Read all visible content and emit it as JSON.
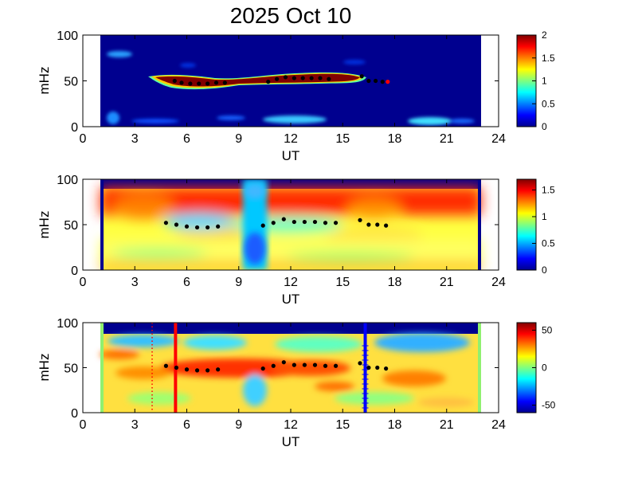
{
  "title": "2025 Oct 10",
  "colors": {
    "deep_blue": "#00008f",
    "dark_red": "#800000",
    "marker_black": "#000000",
    "marker_red": "#ff0000",
    "line_red": "#ff0000",
    "line_blue": "#0000ff"
  },
  "chart_data": [
    {
      "type": "heatmap",
      "xlabel": "UT",
      "ylabel": "mHz",
      "xlim": [
        0,
        24
      ],
      "ylim": [
        0,
        100
      ],
      "xticks": [
        0,
        3,
        6,
        9,
        12,
        15,
        18,
        21,
        24
      ],
      "yticks": [
        0,
        50,
        100
      ],
      "data_range_x": [
        1,
        23
      ],
      "colorbar": {
        "range": [
          0,
          2
        ],
        "ticks": [
          "0",
          "0.5",
          "1",
          "1.5",
          "2"
        ]
      },
      "features": [
        {
          "label": "high-power band",
          "x": [
            4.5,
            16.2
          ],
          "y_center": 52,
          "intensity": 2.0
        },
        {
          "label": "patch",
          "x": [
            1.7,
            2.8
          ],
          "y_center": 78,
          "intensity": 0.6
        },
        {
          "label": "patch",
          "x": [
            18.5,
            20.5
          ],
          "y_center": 7,
          "intensity": 0.7
        },
        {
          "label": "low band",
          "x": [
            1.5,
            14.5
          ],
          "y_center": 6,
          "intensity": 0.5
        }
      ],
      "markers": {
        "color": "black",
        "points": [
          [
            5.3,
            50
          ],
          [
            5.7,
            48
          ],
          [
            6.2,
            47
          ],
          [
            6.7,
            47
          ],
          [
            7.2,
            47
          ],
          [
            7.7,
            48
          ],
          [
            8.2,
            48
          ],
          [
            10.7,
            49
          ],
          [
            11.2,
            52
          ],
          [
            11.7,
            54
          ],
          [
            12.2,
            53
          ],
          [
            12.7,
            53
          ],
          [
            13.2,
            53
          ],
          [
            13.7,
            53
          ],
          [
            14.2,
            52
          ],
          [
            16.1,
            55
          ],
          [
            16.5,
            50
          ],
          [
            16.9,
            50
          ],
          [
            17.3,
            49
          ],
          [
            17.6,
            49
          ]
        ],
        "last_point_color": "red"
      }
    },
    {
      "type": "heatmap",
      "xlabel": "UT",
      "ylabel": "mHz",
      "xlim": [
        0,
        24
      ],
      "ylim": [
        0,
        100
      ],
      "xticks": [
        0,
        3,
        6,
        9,
        12,
        15,
        18,
        21,
        24
      ],
      "yticks": [
        0,
        50,
        100
      ],
      "data_range_x": [
        1,
        23
      ],
      "colorbar": {
        "range": [
          0,
          1.7
        ],
        "ticks": [
          "0",
          "0.5",
          "1",
          "1.5"
        ]
      },
      "markers": {
        "color": "black",
        "points": [
          [
            4.8,
            52
          ],
          [
            5.4,
            50
          ],
          [
            6.0,
            48
          ],
          [
            6.6,
            47
          ],
          [
            7.2,
            47
          ],
          [
            7.8,
            48
          ],
          [
            10.4,
            49
          ],
          [
            11.0,
            52
          ],
          [
            11.6,
            56
          ],
          [
            12.2,
            53
          ],
          [
            12.8,
            53
          ],
          [
            13.4,
            53
          ],
          [
            14.0,
            52
          ],
          [
            14.6,
            52
          ],
          [
            16.0,
            55
          ],
          [
            16.5,
            50
          ],
          [
            17.0,
            50
          ],
          [
            17.5,
            49
          ]
        ]
      }
    },
    {
      "type": "heatmap",
      "xlabel": "UT",
      "ylabel": "mHz",
      "xlim": [
        0,
        24
      ],
      "ylim": [
        0,
        100
      ],
      "xticks": [
        0,
        3,
        6,
        9,
        12,
        15,
        18,
        21,
        24
      ],
      "yticks": [
        0,
        50,
        100
      ],
      "data_range_x": [
        1,
        23
      ],
      "colorbar": {
        "range": [
          -60,
          60
        ],
        "ticks": [
          "-50",
          "0",
          "50"
        ]
      },
      "vertical_lines": [
        {
          "x": 5.35,
          "color": "red",
          "style": "solid"
        },
        {
          "x": 16.3,
          "color": "blue",
          "style": "solid"
        },
        {
          "x": 4.0,
          "color": "red",
          "style": "dotted"
        }
      ],
      "markers": {
        "color": "black",
        "points": [
          [
            4.8,
            52
          ],
          [
            5.4,
            50
          ],
          [
            6.0,
            48
          ],
          [
            6.6,
            47
          ],
          [
            7.2,
            47
          ],
          [
            7.8,
            48
          ],
          [
            10.4,
            49
          ],
          [
            11.0,
            52
          ],
          [
            11.6,
            56
          ],
          [
            12.2,
            53
          ],
          [
            12.8,
            53
          ],
          [
            13.4,
            53
          ],
          [
            14.0,
            52
          ],
          [
            14.6,
            52
          ],
          [
            16.0,
            55
          ],
          [
            16.5,
            50
          ],
          [
            17.0,
            50
          ],
          [
            17.5,
            49
          ]
        ]
      }
    }
  ]
}
